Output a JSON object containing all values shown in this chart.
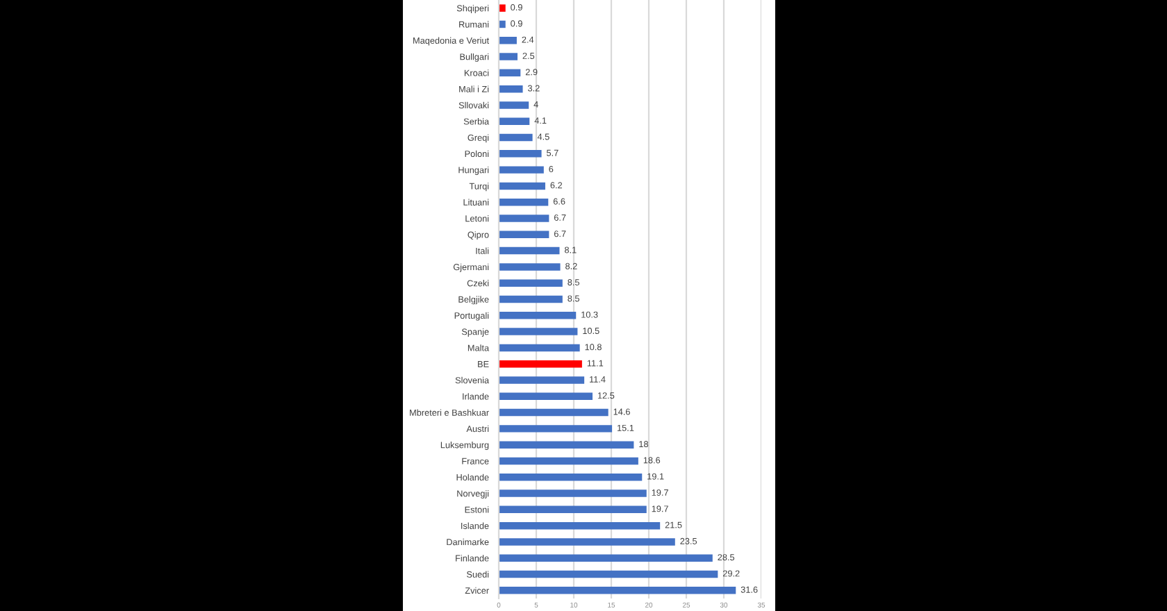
{
  "chart_data": {
    "type": "bar",
    "orientation": "horizontal",
    "categories": [
      "Shqiperi",
      "Rumani",
      "Maqedonia e Veriut",
      "Bullgari",
      "Kroaci",
      "Mali i Zi",
      "Sllovaki",
      "Serbia",
      "Greqi",
      "Poloni",
      "Hungari",
      "Turqi",
      "Lituani",
      "Letoni",
      "Qipro",
      "Itali",
      "Gjermani",
      "Czeki",
      "Belgjike",
      "Portugali",
      "Spanje",
      "Malta",
      "BE",
      "Slovenia",
      "Irlande",
      "Mbreteri e Bashkuar",
      "Austri",
      "Luksemburg",
      "France",
      "Holande",
      "Norvegji",
      "Estoni",
      "Islande",
      "Danimarke",
      "Finlande",
      "Suedi",
      "Zvicer"
    ],
    "values": [
      0.9,
      0.9,
      2.4,
      2.5,
      2.9,
      3.2,
      4,
      4.1,
      4.5,
      5.7,
      6,
      6.2,
      6.6,
      6.7,
      6.7,
      8.1,
      8.2,
      8.5,
      8.5,
      10.3,
      10.5,
      10.8,
      11.1,
      11.4,
      12.5,
      14.6,
      15.1,
      18,
      18.6,
      19.1,
      19.7,
      19.7,
      21.5,
      23.5,
      28.5,
      29.2,
      31.6
    ],
    "colors": [
      "#ff0000",
      "#4472c4",
      "#4472c4",
      "#4472c4",
      "#4472c4",
      "#4472c4",
      "#4472c4",
      "#4472c4",
      "#4472c4",
      "#4472c4",
      "#4472c4",
      "#4472c4",
      "#4472c4",
      "#4472c4",
      "#4472c4",
      "#4472c4",
      "#4472c4",
      "#4472c4",
      "#4472c4",
      "#4472c4",
      "#4472c4",
      "#4472c4",
      "#ff0000",
      "#4472c4",
      "#4472c4",
      "#4472c4",
      "#4472c4",
      "#4472c4",
      "#4472c4",
      "#4472c4",
      "#4472c4",
      "#4472c4",
      "#4472c4",
      "#4472c4",
      "#4472c4",
      "#4472c4",
      "#4472c4"
    ],
    "xlim": [
      0,
      35
    ],
    "xticks": [
      0,
      5,
      10,
      15,
      20,
      25,
      30,
      35
    ],
    "grid": "x",
    "data_labels": true
  }
}
